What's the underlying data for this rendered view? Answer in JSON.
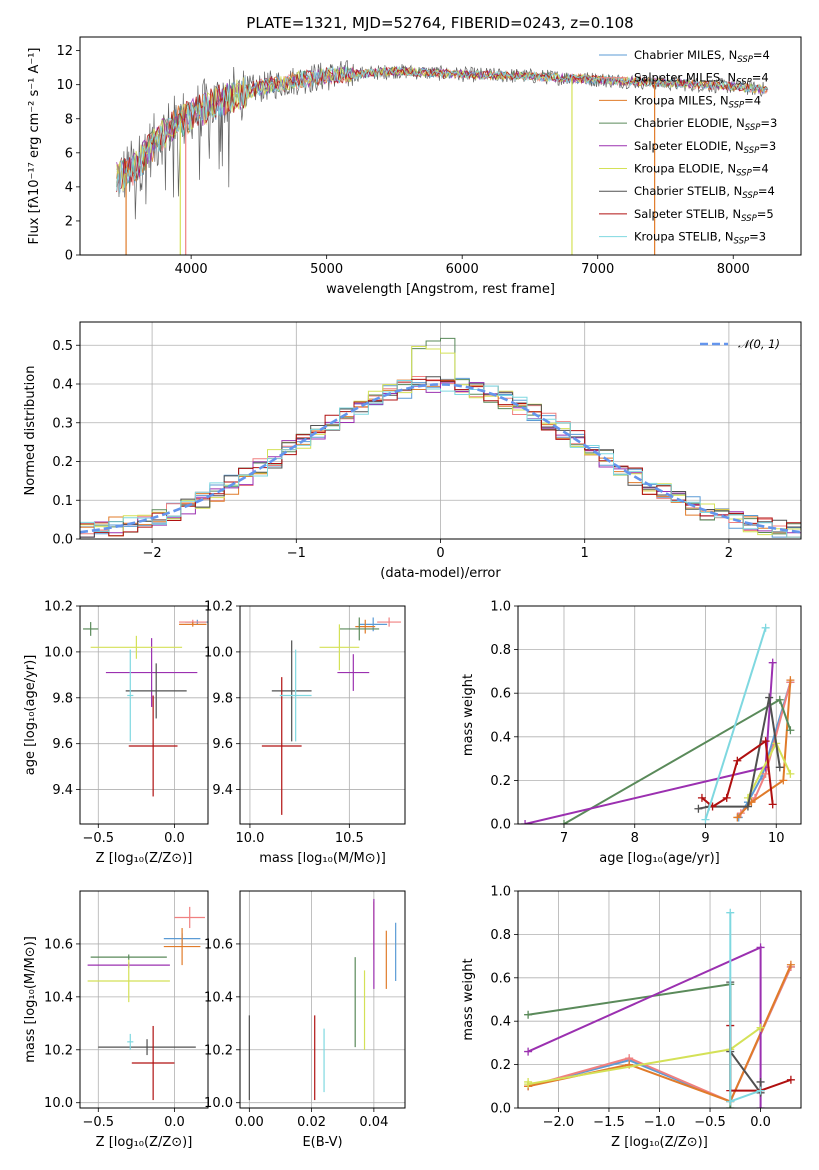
{
  "title": "PLATE=1321, MJD=52764, FIBERID=0243, z=0.108",
  "models": [
    {
      "name": "Chabrier MILES",
      "nssp": "4",
      "color": "#5b9bd5"
    },
    {
      "name": "Salpeter MILES",
      "nssp": "4",
      "color": "#f08080"
    },
    {
      "name": "Kroupa MILES",
      "nssp": "4",
      "color": "#e07b2a"
    },
    {
      "name": "Chabrier ELODIE",
      "nssp": "3",
      "color": "#5a8a5a"
    },
    {
      "name": "Salpeter ELODIE",
      "nssp": "3",
      "color": "#9b30b0"
    },
    {
      "name": "Kroupa ELODIE",
      "nssp": "4",
      "color": "#d4e157"
    },
    {
      "name": "Chabrier STELIB",
      "nssp": "4",
      "color": "#505050"
    },
    {
      "name": "Salpeter STELIB",
      "nssp": "5",
      "color": "#b01010"
    },
    {
      "name": "Kroupa STELIB",
      "nssp": "3",
      "color": "#7fd8e0"
    }
  ],
  "chart_data": [
    {
      "type": "line",
      "name": "spectrum",
      "xlabel": "wavelength [Angstrom, rest frame]",
      "ylabel": "Flux [fλ10⁻¹⁷ erg cm⁻² s⁻¹ A⁻¹]",
      "xlim": [
        3180,
        8500
      ],
      "ylim": [
        0,
        12.8
      ],
      "xticks": [
        "4000",
        "5000",
        "6000",
        "7000",
        "8000"
      ],
      "yticks": [
        "0",
        "2",
        "4",
        "6",
        "8",
        "10",
        "12"
      ],
      "envelope_x": [
        3450,
        3600,
        3700,
        3800,
        3900,
        4000,
        4200,
        4400,
        4600,
        4800,
        5000,
        5200,
        5500,
        6000,
        6500,
        7000,
        7500,
        8000,
        8260
      ],
      "envelope_y": [
        4.5,
        5.2,
        6.3,
        7.2,
        7.8,
        8.2,
        9.0,
        9.6,
        10.0,
        10.3,
        10.5,
        10.6,
        10.8,
        10.6,
        10.5,
        10.3,
        10.1,
        9.9,
        9.7
      ]
    },
    {
      "type": "line",
      "name": "residual histogram",
      "xlabel": "(data-model)/error",
      "ylabel": "Normed distribution",
      "xlim": [
        -2.5,
        2.5
      ],
      "ylim": [
        0,
        0.56
      ],
      "xticks": [
        "−2",
        "−1",
        "0",
        "1",
        "2"
      ],
      "yticks": [
        "0.0",
        "0.1",
        "0.2",
        "0.3",
        "0.4",
        "0.5"
      ],
      "legend": "𝒩(0, 1)",
      "grid": true
    },
    {
      "type": "scatter",
      "name": "age vs Z",
      "xlabel": "Z [log₁₀(Z/Z⊙)]",
      "ylabel": "age  [log₁₀(age/yr)]",
      "xlim": [
        -0.62,
        0.22
      ],
      "ylim": [
        9.25,
        10.2
      ],
      "xticks": [
        "−0.5",
        "0.0"
      ],
      "yticks": [
        "9.4",
        "9.6",
        "9.8",
        "10.0",
        "10.2"
      ],
      "points": [
        {
          "m": 0,
          "x": 0.15,
          "y": 10.13,
          "ex": 0.08,
          "ey": 0.01
        },
        {
          "m": 1,
          "x": 0.12,
          "y": 10.13,
          "ex": 0.09,
          "ey": 0.01
        },
        {
          "m": 2,
          "x": 0.12,
          "y": 10.12,
          "ex": 0.09,
          "ey": 0.01
        },
        {
          "m": 3,
          "x": -0.55,
          "y": 10.1,
          "ex": 0.05,
          "ey": 0.03
        },
        {
          "m": 4,
          "x": -0.15,
          "y": 9.91,
          "ex": 0.3,
          "ey": 0.15
        },
        {
          "m": 5,
          "x": -0.25,
          "y": 10.02,
          "ex": 0.3,
          "ey": 0.05
        },
        {
          "m": 6,
          "x": -0.12,
          "y": 9.83,
          "ex": 0.2,
          "ey": 0.12
        },
        {
          "m": 7,
          "x": -0.14,
          "y": 9.59,
          "ex": 0.16,
          "ey": 0.22
        },
        {
          "m": 8,
          "x": -0.29,
          "y": 9.81,
          "ex": 0.02,
          "ey": 0.2
        }
      ]
    },
    {
      "type": "scatter",
      "name": "age vs mass",
      "xlabel": "mass [log₁₀(M/M⊙)]",
      "xlim": [
        9.95,
        10.78
      ],
      "ylim": [
        9.25,
        10.2
      ],
      "xticks": [
        "10.0",
        "10.5"
      ],
      "yticks": [
        "9.4",
        "9.6",
        "9.8",
        "10.0",
        "10.2"
      ],
      "points": [
        {
          "m": 0,
          "x": 10.62,
          "y": 10.12,
          "ex": 0.07,
          "ey": 0.03
        },
        {
          "m": 1,
          "x": 10.7,
          "y": 10.13,
          "ex": 0.06,
          "ey": 0.02
        },
        {
          "m": 2,
          "x": 10.58,
          "y": 10.11,
          "ex": 0.05,
          "ey": 0.03
        },
        {
          "m": 3,
          "x": 10.55,
          "y": 10.1,
          "ex": 0.1,
          "ey": 0.05
        },
        {
          "m": 4,
          "x": 10.52,
          "y": 9.91,
          "ex": 0.08,
          "ey": 0.08
        },
        {
          "m": 5,
          "x": 10.45,
          "y": 10.02,
          "ex": 0.1,
          "ey": 0.1
        },
        {
          "m": 6,
          "x": 10.21,
          "y": 9.83,
          "ex": 0.1,
          "ey": 0.22
        },
        {
          "m": 7,
          "x": 10.16,
          "y": 9.59,
          "ex": 0.1,
          "ey": 0.3
        },
        {
          "m": 8,
          "x": 10.23,
          "y": 9.81,
          "ex": 0.08,
          "ey": 0.2
        }
      ]
    },
    {
      "type": "line",
      "name": "mass weight vs age",
      "xlabel": "age  [log₁₀(age/yr)]",
      "ylabel": "mass weight",
      "xlim": [
        6.35,
        10.35
      ],
      "ylim": [
        0,
        1
      ],
      "xticks": [
        "7",
        "8",
        "9",
        "10"
      ],
      "yticks": [
        "0.0",
        "0.2",
        "0.4",
        "0.6",
        "0.8",
        "1.0"
      ],
      "series": [
        {
          "m": 0,
          "x": [
            9.47,
            9.6,
            9.8,
            10.2
          ],
          "y": [
            0.03,
            0.1,
            0.22,
            0.65
          ]
        },
        {
          "m": 1,
          "x": [
            9.5,
            9.7,
            9.85,
            10.2
          ],
          "y": [
            0.05,
            0.12,
            0.23,
            0.65
          ]
        },
        {
          "m": 2,
          "x": [
            9.45,
            9.65,
            10.1,
            10.2
          ],
          "y": [
            0.03,
            0.1,
            0.2,
            0.66
          ]
        },
        {
          "m": 3,
          "x": [
            7.0,
            10.05,
            10.2
          ],
          "y": [
            0.0,
            0.57,
            0.43
          ]
        },
        {
          "m": 4,
          "x": [
            6.45,
            9.85,
            9.95
          ],
          "y": [
            0.0,
            0.26,
            0.74
          ]
        },
        {
          "m": 5,
          "x": [
            9.6,
            10.0,
            10.2
          ],
          "y": [
            0.12,
            0.37,
            0.23
          ]
        },
        {
          "m": 6,
          "x": [
            8.9,
            9.05,
            9.6,
            9.9,
            10.05
          ],
          "y": [
            0.07,
            0.08,
            0.08,
            0.58,
            0.26
          ]
        },
        {
          "m": 7,
          "x": [
            8.95,
            9.1,
            9.3,
            9.45,
            9.85,
            9.95
          ],
          "y": [
            0.12,
            0.08,
            0.12,
            0.29,
            0.38,
            0.09
          ]
        },
        {
          "m": 8,
          "x": [
            9.0,
            9.85
          ],
          "y": [
            0.02,
            0.9
          ]
        }
      ]
    },
    {
      "type": "scatter",
      "name": "mass vs Z",
      "xlabel": "Z [log₁₀(Z/Z⊙)]",
      "ylabel": "mass [log₁₀(M/M⊙)]",
      "xlim": [
        -0.62,
        0.22
      ],
      "ylim": [
        9.98,
        10.8
      ],
      "xticks": [
        "−0.5",
        "0.0"
      ],
      "yticks": [
        "10.0",
        "10.2",
        "10.4",
        "10.6"
      ],
      "points": [
        {
          "m": 0,
          "x": 0.05,
          "y": 10.62,
          "ex": 0.12,
          "ey": 0.02
        },
        {
          "m": 1,
          "x": 0.1,
          "y": 10.7,
          "ex": 0.1,
          "ey": 0.04
        },
        {
          "m": 2,
          "x": 0.05,
          "y": 10.59,
          "ex": 0.12,
          "ey": 0.07
        },
        {
          "m": 3,
          "x": -0.3,
          "y": 10.55,
          "ex": 0.25,
          "ey": 0.01
        },
        {
          "m": 4,
          "x": -0.3,
          "y": 10.52,
          "ex": 0.27,
          "ey": 0.01
        },
        {
          "m": 5,
          "x": -0.3,
          "y": 10.46,
          "ex": 0.27,
          "ey": 0.08
        },
        {
          "m": 6,
          "x": -0.18,
          "y": 10.21,
          "ex": 0.32,
          "ey": 0.03
        },
        {
          "m": 7,
          "x": -0.14,
          "y": 10.15,
          "ex": 0.14,
          "ey": 0.14
        },
        {
          "m": 8,
          "x": -0.29,
          "y": 10.23,
          "ex": 0.02,
          "ey": 0.03
        }
      ]
    },
    {
      "type": "scatter",
      "name": "mass vs E(B-V)",
      "xlabel": "E(B-V)",
      "xlim": [
        -0.003,
        0.05
      ],
      "ylim": [
        9.98,
        10.8
      ],
      "xticks": [
        "0.00",
        "0.02",
        "0.04"
      ],
      "yticks": [
        "10.0",
        "10.2",
        "10.4",
        "10.6"
      ],
      "points": [
        {
          "m": 0,
          "x": 0.047,
          "y": 10.57,
          "ey": 0.11
        },
        {
          "m": 1,
          "x": 0.04,
          "y": 10.65,
          "ey": 0.11
        },
        {
          "m": 2,
          "x": 0.044,
          "y": 10.54,
          "ey": 0.11
        },
        {
          "m": 3,
          "x": 0.034,
          "y": 10.38,
          "ey": 0.17
        },
        {
          "m": 4,
          "x": 0.04,
          "y": 10.6,
          "ey": 0.17
        },
        {
          "m": 5,
          "x": 0.037,
          "y": 10.35,
          "ey": 0.15
        },
        {
          "m": 6,
          "x": 0.0,
          "y": 10.17,
          "ey": 0.16
        },
        {
          "m": 7,
          "x": 0.021,
          "y": 10.17,
          "ey": 0.16
        },
        {
          "m": 8,
          "x": 0.024,
          "y": 10.16,
          "ey": 0.12
        }
      ]
    },
    {
      "type": "line",
      "name": "mass weight vs Z",
      "xlabel": "Z [log₁₀(Z/Z⊙)]",
      "ylabel": "mass weight",
      "xlim": [
        -2.4,
        0.4
      ],
      "ylim": [
        0,
        1
      ],
      "xticks": [
        "−2.0",
        "−1.5",
        "−1.0",
        "−0.5",
        "0.0"
      ],
      "yticks": [
        "0.0",
        "0.2",
        "0.4",
        "0.6",
        "0.8",
        "1.0"
      ],
      "series": [
        {
          "m": 0,
          "x": [
            -2.3,
            -1.3,
            -0.3,
            0.3
          ],
          "y": [
            0.1,
            0.22,
            0.03,
            0.65
          ]
        },
        {
          "m": 1,
          "x": [
            -2.3,
            -1.3,
            -0.3,
            0.3
          ],
          "y": [
            0.1,
            0.23,
            0.03,
            0.65
          ]
        },
        {
          "m": 2,
          "x": [
            -2.3,
            -1.3,
            -0.3,
            0.3
          ],
          "y": [
            0.1,
            0.2,
            0.03,
            0.66
          ]
        },
        {
          "m": 3,
          "x": [
            -2.3,
            -0.3,
            -0.3
          ],
          "y": [
            0.43,
            0.57,
            0.0
          ]
        },
        {
          "m": 4,
          "x": [
            -2.3,
            0.0,
            0.0
          ],
          "y": [
            0.26,
            0.74,
            0.0
          ]
        },
        {
          "m": 5,
          "x": [
            -2.3,
            -2.3,
            -0.3,
            0.0
          ],
          "y": [
            0.12,
            0.11,
            0.27,
            0.37
          ]
        },
        {
          "m": 6,
          "x": [
            -0.3,
            -0.3,
            0.0,
            0.0
          ],
          "y": [
            0.58,
            0.26,
            0.07,
            0.12
          ]
        },
        {
          "m": 7,
          "x": [
            -0.3,
            -0.3,
            0.0,
            0.3
          ],
          "y": [
            0.38,
            0.08,
            0.08,
            0.13
          ]
        },
        {
          "m": 8,
          "x": [
            -0.3,
            -0.3,
            0.0
          ],
          "y": [
            0.9,
            0.03,
            0.08
          ]
        }
      ]
    }
  ]
}
